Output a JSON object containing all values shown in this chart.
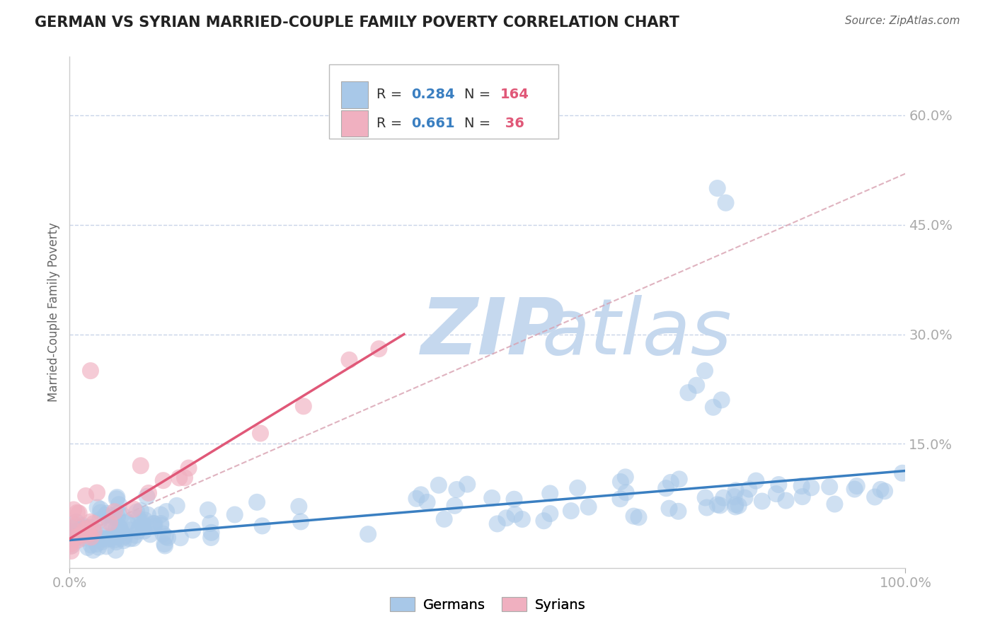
{
  "title": "GERMAN VS SYRIAN MARRIED-COUPLE FAMILY POVERTY CORRELATION CHART",
  "source": "Source: ZipAtlas.com",
  "ylabel": "Married-Couple Family Poverty",
  "xlim": [
    0,
    1
  ],
  "ylim": [
    -0.02,
    0.68
  ],
  "xtick_labels": [
    "0.0%",
    "100.0%"
  ],
  "ytick_labels": [
    "15.0%",
    "30.0%",
    "45.0%",
    "60.0%"
  ],
  "ytick_values": [
    0.15,
    0.3,
    0.45,
    0.6
  ],
  "legend_german_R": "0.284",
  "legend_german_N": "164",
  "legend_syrian_R": "0.661",
  "legend_syrian_N": " 36",
  "german_color": "#a8c8e8",
  "syrian_color": "#f0b0c0",
  "german_line_color": "#3a7fc1",
  "syrian_line_color": "#e05878",
  "gray_line_color": "#d8a0b0",
  "watermark_ZIP_color": "#c5d8ee",
  "watermark_atlas_color": "#c5d8ee",
  "background_color": "#ffffff",
  "title_color": "#222222",
  "axis_label_color": "#4472c4",
  "source_color": "#666666",
  "legend_label_color": "#333333",
  "legend_value_color": "#3a7fc1",
  "legend_N_value_color": "#e05878",
  "grid_color": "#c8d4e8",
  "R_german": 0.284,
  "N_german": 164,
  "R_syrian": 0.661,
  "N_syrian": 36
}
